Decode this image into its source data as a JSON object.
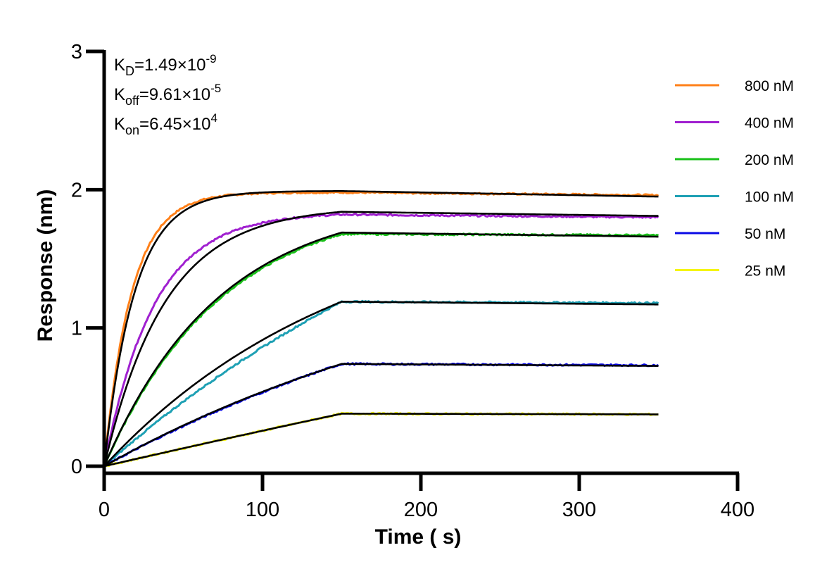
{
  "chart_data": {
    "type": "line",
    "title": "",
    "xlabel": "Time ( s)",
    "ylabel": "Response (nm)",
    "xlim": [
      0,
      400
    ],
    "ylim": [
      0,
      3
    ],
    "xticks": [
      0,
      100,
      200,
      300,
      400
    ],
    "yticks": [
      0,
      1,
      2,
      3
    ],
    "xtick_labels": [
      "0",
      "100",
      "200",
      "300",
      "400"
    ],
    "ytick_labels": [
      "0",
      "1",
      "2",
      "3"
    ],
    "grid": false,
    "legend_position": "top-right",
    "association_end": 150,
    "dissociation_end": 350,
    "annotations": [
      {
        "name": "KD",
        "base": "K",
        "sub": "D",
        "text": "=1.49×10",
        "sup": "-9"
      },
      {
        "name": "Koff",
        "base": "K",
        "sub": "off",
        "text": "=9.61×10",
        "sup": "-5"
      },
      {
        "name": "Kon",
        "base": "K",
        "sub": "on",
        "text": "=6.45×10",
        "sup": "4"
      }
    ],
    "fit_color": "#000000",
    "series": [
      {
        "name": "800 nM",
        "color": "#ff8019",
        "plateau_at_150": 1.98,
        "end_value": 1.96,
        "fit_at_150": 1.99,
        "fit_end": 1.95,
        "k_obs": 0.058,
        "fit_k_obs": 0.052
      },
      {
        "name": "400 nM",
        "color": "#a020d0",
        "plateau_at_150": 1.82,
        "end_value": 1.8,
        "fit_at_150": 1.84,
        "fit_end": 1.81,
        "k_obs": 0.032,
        "fit_k_obs": 0.026
      },
      {
        "name": "200 nM",
        "color": "#19c019",
        "plateau_at_150": 1.68,
        "end_value": 1.67,
        "fit_at_150": 1.69,
        "fit_end": 1.66,
        "k_obs": 0.0135,
        "fit_k_obs": 0.0138
      },
      {
        "name": "100 nM",
        "color": "#1ea0b4",
        "plateau_at_150": 1.19,
        "end_value": 1.18,
        "fit_at_150": 1.19,
        "fit_end": 1.17,
        "k_obs": 0.0035,
        "fit_k_obs": 0.0065
      },
      {
        "name": "50 nM",
        "color": "#0a0ae6",
        "plateau_at_150": 0.74,
        "end_value": 0.73,
        "fit_at_150": 0.74,
        "fit_end": 0.725,
        "k_obs": 0.0035,
        "fit_k_obs": 0.0038
      },
      {
        "name": "25 nM",
        "color": "#f5f514",
        "plateau_at_150": 0.38,
        "end_value": 0.375,
        "fit_at_150": 0.38,
        "fit_end": 0.375,
        "k_obs": 0.0005,
        "fit_k_obs": 0.0005
      }
    ]
  }
}
